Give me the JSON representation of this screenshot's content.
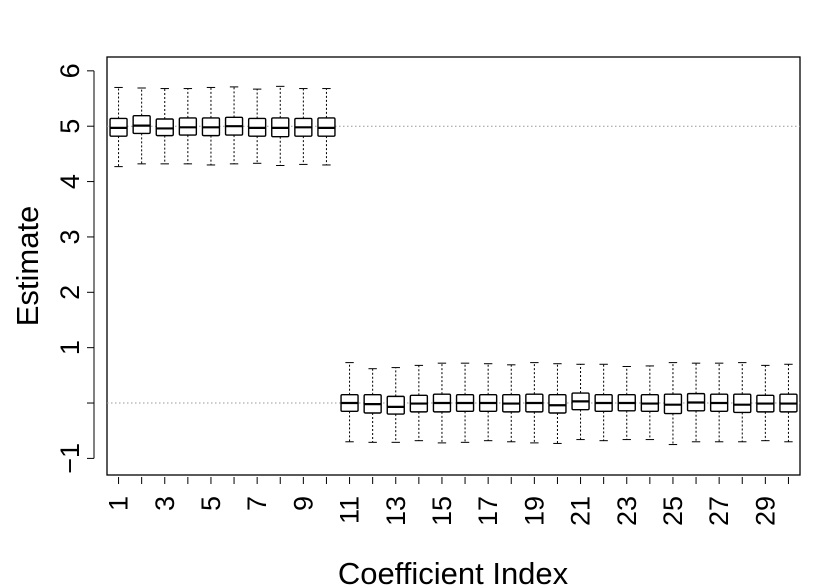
{
  "chart_data": {
    "type": "boxplot",
    "xlabel": "Coefficient Index",
    "ylabel": "Estimate",
    "ylim": [
      -1.3,
      6.25
    ],
    "xlim": [
      0.5,
      30.5
    ],
    "y_ticks": [
      -1,
      0,
      1,
      2,
      3,
      4,
      5,
      6
    ],
    "y_tick_labels": [
      "−1",
      "",
      "1",
      "2",
      "3",
      "4",
      "5",
      "6"
    ],
    "x_ticks": [
      1,
      2,
      3,
      4,
      5,
      6,
      7,
      8,
      9,
      10,
      11,
      12,
      13,
      14,
      15,
      16,
      17,
      18,
      19,
      20,
      21,
      22,
      23,
      24,
      25,
      26,
      27,
      28,
      29,
      30
    ],
    "x_tick_labels": [
      "1",
      "",
      "3",
      "",
      "5",
      "",
      "7",
      "",
      "9",
      "",
      "11",
      "",
      "13",
      "",
      "15",
      "",
      "17",
      "",
      "19",
      "",
      "21",
      "",
      "23",
      "",
      "25",
      "",
      "27",
      "",
      "29",
      ""
    ],
    "reference_lines": [
      0,
      5
    ],
    "boxes": [
      {
        "index": 1,
        "whisker_low": 4.27,
        "q1": 4.82,
        "median": 4.97,
        "q3": 5.14,
        "whisker_high": 5.7
      },
      {
        "index": 2,
        "whisker_low": 4.32,
        "q1": 4.87,
        "median": 5.01,
        "q3": 5.19,
        "whisker_high": 5.69
      },
      {
        "index": 3,
        "whisker_low": 4.32,
        "q1": 4.83,
        "median": 4.96,
        "q3": 5.13,
        "whisker_high": 5.68
      },
      {
        "index": 4,
        "whisker_low": 4.32,
        "q1": 4.84,
        "median": 4.98,
        "q3": 5.15,
        "whisker_high": 5.68
      },
      {
        "index": 5,
        "whisker_low": 4.3,
        "q1": 4.83,
        "median": 4.98,
        "q3": 5.15,
        "whisker_high": 5.7
      },
      {
        "index": 6,
        "whisker_low": 4.32,
        "q1": 4.84,
        "median": 5.0,
        "q3": 5.16,
        "whisker_high": 5.71
      },
      {
        "index": 7,
        "whisker_low": 4.33,
        "q1": 4.82,
        "median": 4.97,
        "q3": 5.14,
        "whisker_high": 5.67
      },
      {
        "index": 8,
        "whisker_low": 4.29,
        "q1": 4.81,
        "median": 4.97,
        "q3": 5.15,
        "whisker_high": 5.72
      },
      {
        "index": 9,
        "whisker_low": 4.31,
        "q1": 4.82,
        "median": 4.98,
        "q3": 5.14,
        "whisker_high": 5.68
      },
      {
        "index": 10,
        "whisker_low": 4.3,
        "q1": 4.82,
        "median": 4.97,
        "q3": 5.15,
        "whisker_high": 5.68
      },
      {
        "index": 11,
        "whisker_low": -0.7,
        "q1": -0.15,
        "median": 0.0,
        "q3": 0.15,
        "whisker_high": 0.73
      },
      {
        "index": 12,
        "whisker_low": -0.71,
        "q1": -0.18,
        "median": -0.02,
        "q3": 0.15,
        "whisker_high": 0.62
      },
      {
        "index": 13,
        "whisker_low": -0.71,
        "q1": -0.2,
        "median": -0.07,
        "q3": 0.12,
        "whisker_high": 0.64
      },
      {
        "index": 14,
        "whisker_low": -0.68,
        "q1": -0.16,
        "median": -0.01,
        "q3": 0.14,
        "whisker_high": 0.68
      },
      {
        "index": 15,
        "whisker_low": -0.72,
        "q1": -0.16,
        "median": 0.0,
        "q3": 0.16,
        "whisker_high": 0.72
      },
      {
        "index": 16,
        "whisker_low": -0.71,
        "q1": -0.15,
        "median": 0.0,
        "q3": 0.15,
        "whisker_high": 0.72
      },
      {
        "index": 17,
        "whisker_low": -0.68,
        "q1": -0.15,
        "median": 0.0,
        "q3": 0.15,
        "whisker_high": 0.71
      },
      {
        "index": 18,
        "whisker_low": -0.7,
        "q1": -0.16,
        "median": -0.01,
        "q3": 0.15,
        "whisker_high": 0.69
      },
      {
        "index": 19,
        "whisker_low": -0.72,
        "q1": -0.16,
        "median": 0.0,
        "q3": 0.16,
        "whisker_high": 0.73
      },
      {
        "index": 20,
        "whisker_low": -0.73,
        "q1": -0.18,
        "median": -0.04,
        "q3": 0.15,
        "whisker_high": 0.71
      },
      {
        "index": 21,
        "whisker_low": -0.66,
        "q1": -0.12,
        "median": 0.03,
        "q3": 0.18,
        "whisker_high": 0.7
      },
      {
        "index": 22,
        "whisker_low": -0.68,
        "q1": -0.15,
        "median": 0.0,
        "q3": 0.15,
        "whisker_high": 0.7
      },
      {
        "index": 23,
        "whisker_low": -0.66,
        "q1": -0.14,
        "median": 0.0,
        "q3": 0.15,
        "whisker_high": 0.66
      },
      {
        "index": 24,
        "whisker_low": -0.66,
        "q1": -0.15,
        "median": -0.01,
        "q3": 0.15,
        "whisker_high": 0.67
      },
      {
        "index": 25,
        "whisker_low": -0.75,
        "q1": -0.19,
        "median": -0.03,
        "q3": 0.16,
        "whisker_high": 0.73
      },
      {
        "index": 26,
        "whisker_low": -0.7,
        "q1": -0.14,
        "median": 0.01,
        "q3": 0.17,
        "whisker_high": 0.72
      },
      {
        "index": 27,
        "whisker_low": -0.7,
        "q1": -0.15,
        "median": 0.0,
        "q3": 0.16,
        "whisker_high": 0.72
      },
      {
        "index": 28,
        "whisker_low": -0.7,
        "q1": -0.17,
        "median": -0.03,
        "q3": 0.16,
        "whisker_high": 0.73
      },
      {
        "index": 29,
        "whisker_low": -0.68,
        "q1": -0.16,
        "median": -0.01,
        "q3": 0.14,
        "whisker_high": 0.68
      },
      {
        "index": 30,
        "whisker_low": -0.7,
        "q1": -0.16,
        "median": -0.01,
        "q3": 0.16,
        "whisker_high": 0.7
      }
    ]
  }
}
